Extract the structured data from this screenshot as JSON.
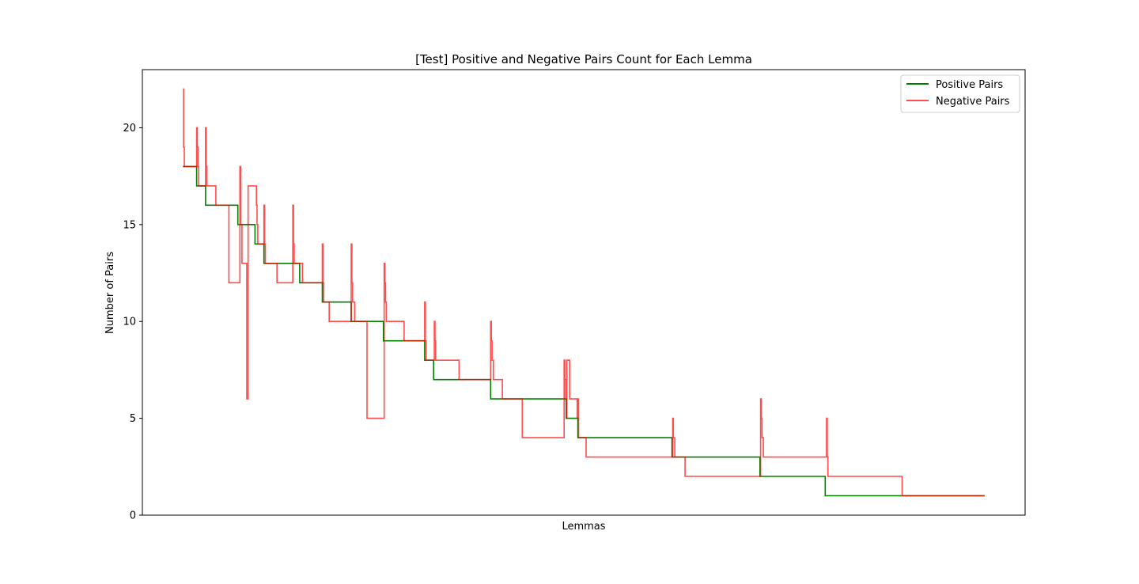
{
  "chart_data": {
    "type": "line",
    "title": "[Test] Positive and Negative Pairs Count for Each Lemma",
    "xlabel": "Lemmas",
    "ylabel": "Number of Pairs",
    "xlim": [
      -59,
      1226
    ],
    "ylim": [
      0,
      23
    ],
    "yticks": [
      0,
      5,
      10,
      15,
      20
    ],
    "ytick_labels": [
      "0",
      "5",
      "10",
      "15",
      "20"
    ],
    "grid": false,
    "legend_position": "top-right",
    "series": [
      {
        "name": "Positive Pairs",
        "color": "#008000",
        "step": "post",
        "x": [
          0,
          20,
          33,
          80,
          105,
          118,
          170,
          203,
          245,
          292,
          352,
          365,
          448,
          558,
          575,
          712,
          840,
          935,
          1167
        ],
        "y": [
          18,
          17,
          16,
          15,
          14,
          13,
          12,
          11,
          10,
          9,
          8,
          7,
          6,
          5,
          4,
          3,
          2,
          1,
          1
        ]
      },
      {
        "name": "Negative Pairs",
        "color": "#ff0000",
        "opacity": 0.7,
        "step": "post",
        "x": [
          0,
          1,
          2,
          4,
          20,
          21,
          22,
          23,
          27,
          33,
          34,
          35,
          36,
          37,
          48,
          67,
          83,
          84,
          85,
          86,
          93,
          95,
          107,
          108,
          109,
          110,
          118,
          119,
          120,
          121,
          122,
          124,
          137,
          160,
          161,
          162,
          163,
          174,
          203,
          204,
          205,
          206,
          213,
          245,
          246,
          247,
          248,
          250,
          268,
          293,
          294,
          295,
          296,
          302,
          322,
          352,
          353,
          354,
          358,
          366,
          367,
          368,
          402,
          448,
          449,
          450,
          452,
          456,
          465,
          494,
          555,
          556,
          557,
          558,
          559,
          563,
          574,
          575,
          576,
          577,
          580,
          587,
          627,
          713,
          714,
          715,
          716,
          731,
          841,
          842,
          843,
          845,
          937,
          938,
          939,
          940,
          941,
          1047,
          1167
        ],
        "y": [
          22,
          19,
          18,
          18,
          20,
          19,
          18,
          17,
          17,
          20,
          18,
          17,
          17,
          17,
          16,
          12,
          18,
          15,
          15,
          13,
          6,
          17,
          16,
          15,
          14,
          14,
          16,
          14,
          13,
          13,
          13,
          13,
          12,
          16,
          14,
          13,
          13,
          12,
          14,
          12,
          11,
          11,
          10,
          14,
          12,
          11,
          11,
          10,
          5,
          13,
          12,
          11,
          10,
          10,
          9,
          11,
          9,
          8,
          8,
          10,
          9,
          8,
          7,
          10,
          9,
          8,
          7,
          7,
          6,
          4,
          8,
          7,
          6,
          5,
          8,
          6,
          5,
          6,
          4,
          4,
          4,
          3,
          3,
          5,
          4,
          4,
          3,
          2,
          6,
          5,
          4,
          3,
          5,
          3,
          2,
          2,
          2,
          1,
          1
        ]
      }
    ]
  }
}
